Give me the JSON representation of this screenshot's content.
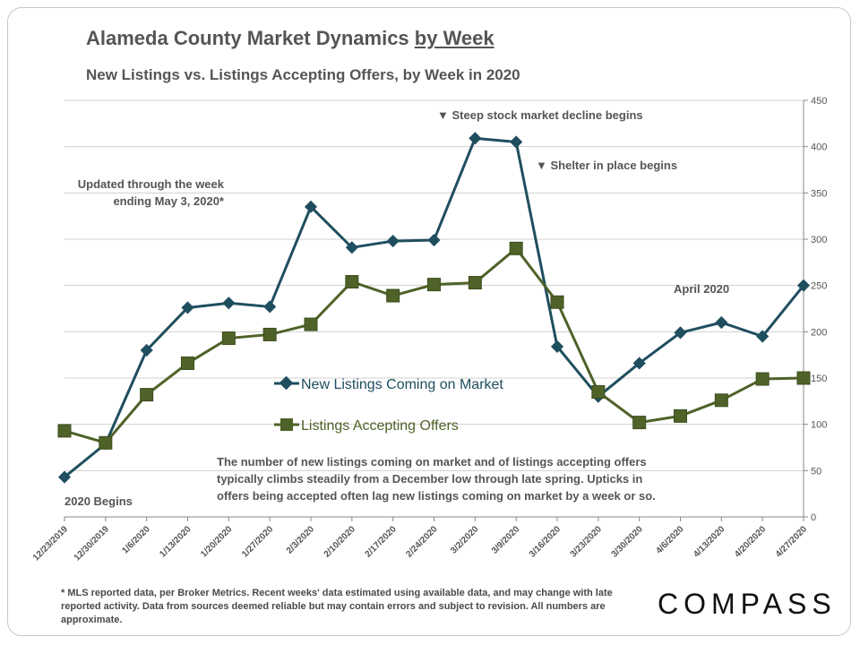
{
  "title_main": "Alameda County Market Dynamics ",
  "title_underlined": "by Week",
  "subtitle": "New Listings vs. Listings Accepting Offers, by Week in 2020",
  "footnote": "* MLS reported data, per Broker Metrics. Recent weeks' data estimated using available data, and may change with late reported activity. Data from sources deemed reliable but may contain errors and subject to revision. All numbers are approximate.",
  "logo": "COMPASS",
  "colors": {
    "new_listings": "#1f4e5f",
    "accepting_offers": "#4f6228",
    "text": "#555555",
    "grid": "#d0d0d0"
  },
  "annotations": {
    "updated": [
      "Updated through the week",
      "ending May 3, 2020*"
    ],
    "stock_decline": "▼ Steep stock market decline begins",
    "shelter": "▼ Shelter in place begins",
    "april": "April 2020",
    "begins": "2020 Begins",
    "note": [
      "The number of new listings coming on market and of listings accepting offers",
      "typically climbs steadily from a December low through late spring. Upticks in",
      "offers being accepted often lag new listings coming on market by a week or so."
    ]
  },
  "chart_data": {
    "type": "line",
    "title": "Alameda County Market Dynamics by Week",
    "subtitle": "New Listings vs. Listings Accepting Offers, by Week in 2020",
    "categories": [
      "12/23/2019",
      "12/30/2019",
      "1/6/2020",
      "1/13/2020",
      "1/20/2020",
      "1/27/2020",
      "2/3/2020",
      "2/10/2020",
      "2/17/2020",
      "2/24/2020",
      "3/2/2020",
      "3/9/2020",
      "3/16/2020",
      "3/23/2020",
      "3/30/2020",
      "4/6/2020",
      "4/13/2020",
      "4/20/2020",
      "4/27/2020"
    ],
    "series": [
      {
        "name": "New Listings Coming on Market",
        "values": [
          43,
          79,
          180,
          226,
          231,
          227,
          335,
          291,
          298,
          299,
          409,
          405,
          184,
          130,
          166,
          199,
          210,
          195,
          250
        ]
      },
      {
        "name": "Listings Accepting Offers",
        "values": [
          93,
          80,
          132,
          166,
          193,
          197,
          208,
          254,
          239,
          251,
          253,
          290,
          232,
          135,
          102,
          109,
          126,
          149,
          150
        ]
      }
    ],
    "y_axis_position": "right",
    "ylim": [
      0,
      450
    ],
    "yticks": [
      0,
      50,
      100,
      150,
      200,
      250,
      300,
      350,
      400,
      450
    ],
    "grid": true,
    "legend_placement": "center"
  }
}
